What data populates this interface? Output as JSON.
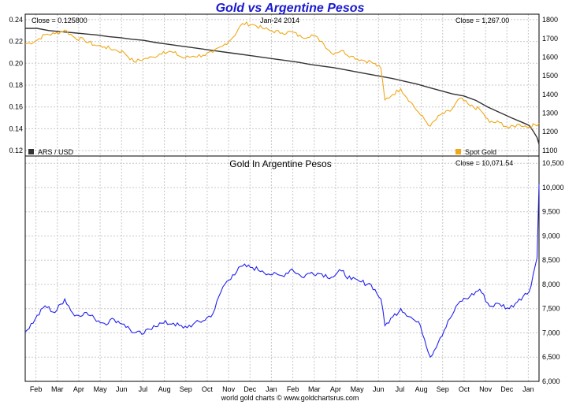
{
  "colors": {
    "title": "#1a1acc",
    "ars": "#333333",
    "gold": "#f0a818",
    "gold_in_ars": "#2222ee",
    "grid": "#c8c8c8",
    "frame": "#000000"
  },
  "header": {
    "title": "Gold vs Argentine Pesos",
    "date": "Jan-24  2014",
    "footer": "world gold charts © www.goldchartsrus.com"
  },
  "chart_data": [
    {
      "type": "line",
      "panel": "top",
      "left_close_label": "Close = 0.125800",
      "right_close_label": "Close = 1,267.00",
      "legend": [
        "ARS / USD",
        "Spot Gold"
      ],
      "left_axis": {
        "ylim": [
          0.115,
          0.245
        ],
        "ticks": [
          "0.24",
          "0.22",
          "0.20",
          "0.18",
          "0.16",
          "0.14",
          "0.12"
        ]
      },
      "right_axis": {
        "ylim": [
          1070,
          1830
        ],
        "ticks": [
          "1800",
          "1700",
          "1600",
          "1500",
          "1400",
          "1300",
          "1200",
          "1100"
        ]
      },
      "series": [
        {
          "name": "ARS / USD",
          "axis": "left",
          "x": [
            0,
            0.3,
            0.6,
            0.9,
            1.2,
            1.5,
            1.8,
            2.1,
            2.4,
            2.7,
            3.0,
            3.3,
            3.6,
            3.9,
            4.2,
            4.5,
            4.8,
            5.1,
            5.4,
            5.7,
            6.0,
            6.3,
            6.6,
            6.9,
            7.2,
            7.5,
            7.8,
            8.1,
            8.4,
            8.7,
            9.0,
            9.3,
            9.6,
            9.9,
            10.2,
            10.5,
            10.8,
            11.1,
            11.4,
            11.7,
            12.0,
            12.3,
            12.6,
            12.75,
            12.85,
            12.95,
            13.0
          ],
          "values": [
            0.232,
            0.232,
            0.23,
            0.229,
            0.228,
            0.227,
            0.226,
            0.2245,
            0.2235,
            0.222,
            0.221,
            0.219,
            0.2175,
            0.216,
            0.2145,
            0.213,
            0.2115,
            0.21,
            0.2085,
            0.207,
            0.2055,
            0.204,
            0.2025,
            0.201,
            0.199,
            0.1975,
            0.196,
            0.194,
            0.192,
            0.19,
            0.188,
            0.186,
            0.1835,
            0.181,
            0.178,
            0.175,
            0.172,
            0.17,
            0.166,
            0.16,
            0.155,
            0.15,
            0.1455,
            0.143,
            0.138,
            0.132,
            0.1258
          ]
        },
        {
          "name": "Spot Gold",
          "axis": "right",
          "x": [
            0,
            0.25,
            0.5,
            0.75,
            1.0,
            1.25,
            1.5,
            1.75,
            2.0,
            2.25,
            2.5,
            2.75,
            3.0,
            3.25,
            3.5,
            3.75,
            4.0,
            4.25,
            4.5,
            4.75,
            5.0,
            5.25,
            5.5,
            5.75,
            6.0,
            6.25,
            6.5,
            6.75,
            7.0,
            7.25,
            7.5,
            7.75,
            8.0,
            8.25,
            8.5,
            8.75,
            9.0,
            9.1,
            9.3,
            9.5,
            9.75,
            10.0,
            10.25,
            10.5,
            10.75,
            11.0,
            11.25,
            11.5,
            11.75,
            12.0,
            12.25,
            12.5,
            12.75,
            13.0
          ],
          "values": [
            1670,
            1685,
            1720,
            1725,
            1745,
            1705,
            1690,
            1665,
            1655,
            1640,
            1625,
            1575,
            1590,
            1600,
            1630,
            1625,
            1595,
            1605,
            1610,
            1625,
            1660,
            1705,
            1780,
            1775,
            1755,
            1740,
            1730,
            1735,
            1705,
            1720,
            1685,
            1620,
            1635,
            1605,
            1585,
            1575,
            1540,
            1370,
            1400,
            1430,
            1360,
            1290,
            1230,
            1290,
            1310,
            1380,
            1340,
            1320,
            1250,
            1250,
            1220,
            1240,
            1225,
            1245
          ]
        }
      ]
    },
    {
      "type": "line",
      "panel": "bottom",
      "title": "Gold In Argentine Pesos",
      "close_label": "Close = 10,071.54",
      "ylim": [
        6000,
        10650
      ],
      "y_ticks": [
        "10,500",
        "10,000",
        "9,500",
        "9,000",
        "8,500",
        "8,000",
        "7,500",
        "7,000",
        "6,500",
        "6,000"
      ],
      "x_ticks": [
        "Feb",
        "Mar",
        "Apr",
        "May",
        "Jun",
        "Jul",
        "Aug",
        "Sep",
        "Oct",
        "Nov",
        "Dec",
        "Jan",
        "Feb",
        "Mar",
        "Apr",
        "May",
        "Jun",
        "Jul",
        "Aug",
        "Sep",
        "Oct",
        "Nov",
        "Dec",
        "Jan"
      ],
      "series": [
        {
          "name": "Gold In Argentine Pesos",
          "x": [
            0,
            0.25,
            0.5,
            0.75,
            1.0,
            1.25,
            1.5,
            1.75,
            2.0,
            2.25,
            2.5,
            2.75,
            3.0,
            3.25,
            3.5,
            3.75,
            4.0,
            4.25,
            4.5,
            4.75,
            5.0,
            5.25,
            5.5,
            5.75,
            6.0,
            6.25,
            6.5,
            6.75,
            7.0,
            7.25,
            7.5,
            7.75,
            8.0,
            8.25,
            8.5,
            8.75,
            9.0,
            9.1,
            9.3,
            9.5,
            9.75,
            10.0,
            10.25,
            10.5,
            10.75,
            11.0,
            11.25,
            11.5,
            11.75,
            12.0,
            12.25,
            12.5,
            12.75,
            12.85,
            12.95,
            13.0
          ],
          "values": [
            7020,
            7280,
            7560,
            7420,
            7700,
            7350,
            7420,
            7300,
            7200,
            7280,
            7180,
            7000,
            6980,
            7150,
            7200,
            7200,
            7100,
            7180,
            7250,
            7400,
            7950,
            8200,
            8380,
            8350,
            8280,
            8200,
            8180,
            8320,
            8150,
            8250,
            8220,
            8150,
            8280,
            8100,
            8050,
            8000,
            7700,
            7150,
            7330,
            7500,
            7330,
            7150,
            6500,
            6900,
            7300,
            7650,
            7750,
            7900,
            7550,
            7600,
            7500,
            7700,
            7850,
            8200,
            8550,
            10070
          ]
        }
      ]
    }
  ]
}
